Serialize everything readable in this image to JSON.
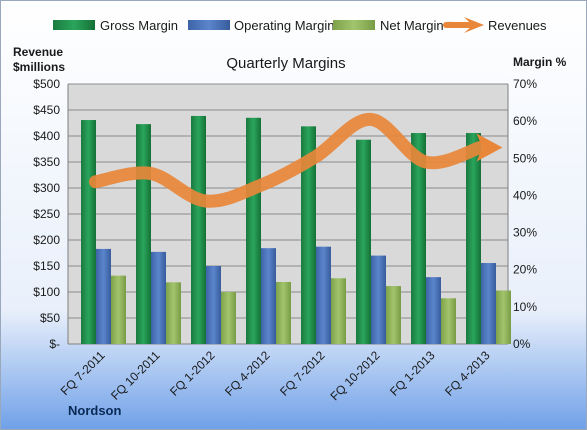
{
  "chart_data": {
    "type": "bar",
    "title": "Quarterly Margins",
    "brand": "Nordson",
    "ylabel_left_line1": "Revenue",
    "ylabel_left_line2": "$millions",
    "ylabel_right": "Margin %",
    "categories": [
      "FQ 7-2011",
      "FQ 10-2011",
      "FQ 1-2012",
      "FQ 4-2012",
      "FQ 7-2012",
      "FQ 10-2012",
      "FQ 1-2013",
      "FQ 4-2013"
    ],
    "left_axis": {
      "min": 0,
      "max": 500,
      "step": 50,
      "tick_labels": [
        "$-",
        "$50",
        "$100",
        "$150",
        "$200",
        "$250",
        "$300",
        "$350",
        "$400",
        "$450",
        "$500"
      ]
    },
    "right_axis": {
      "min": 0,
      "max": 70,
      "step": 10,
      "tick_labels": [
        "0%",
        "10%",
        "20%",
        "30%",
        "40%",
        "50%",
        "60%",
        "70%"
      ]
    },
    "series": [
      {
        "name": "Gross Margin",
        "axis": "right",
        "kind": "bar",
        "color": "#1e8a4a",
        "values": [
          60.3,
          59.2,
          61.4,
          60.9,
          58.6,
          55.0,
          56.8,
          56.8
        ]
      },
      {
        "name": "Operating Margin",
        "axis": "right",
        "kind": "bar",
        "color": "#4a72b8",
        "values": [
          25.6,
          24.8,
          21.0,
          25.8,
          26.2,
          23.8,
          18.0,
          21.8
        ]
      },
      {
        "name": "Net Margin",
        "axis": "right",
        "kind": "bar",
        "color": "#8fb25a",
        "values": [
          18.4,
          16.6,
          14.0,
          16.7,
          17.7,
          15.6,
          12.3,
          14.4
        ]
      },
      {
        "name": "Revenues",
        "axis": "left",
        "kind": "line",
        "color": "#e8873a",
        "values": [
          312,
          328,
          275,
          305,
          360,
          432,
          350,
          378
        ]
      }
    ],
    "legend_position": "top",
    "grid": true
  }
}
